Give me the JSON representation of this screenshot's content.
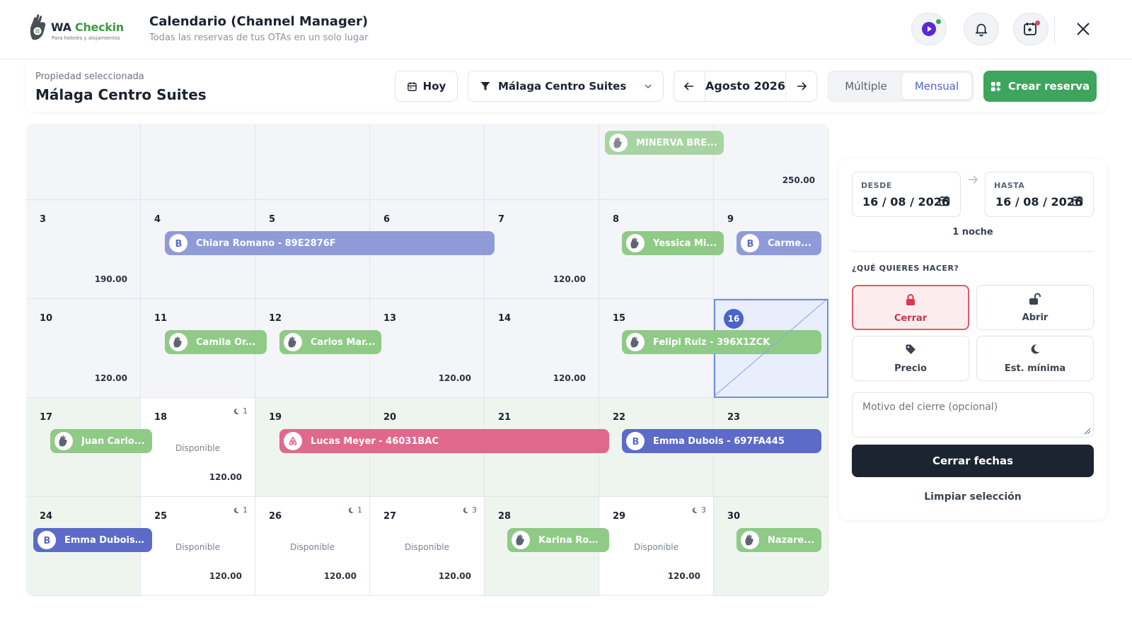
{
  "header": {
    "logo_name_a": "WA",
    "logo_name_b": "Checkin",
    "logo_tagline": "Para hoteles y alojamientos",
    "title": "Calendario (Channel Manager)",
    "subtitle": "Todas las reservas de tus OTAs en un solo lugar",
    "icons": [
      "play-icon",
      "bell-icon",
      "calendar-plus-icon",
      "close-icon"
    ],
    "accent_dot_color": "#3da55d",
    "alert_dot_color": "#e0485a"
  },
  "toolbar": {
    "property_label": "Propiedad seleccionada",
    "property_value": "Málaga Centro Suites",
    "today_label": "Hoy",
    "property_select": "Málaga Centro Suites",
    "month_label": "Agosto 2026",
    "view_multiple": "Múltiple",
    "view_monthly": "Mensual",
    "create_label": "Crear reserva",
    "accent_color": "#3da55d",
    "view_active_color": "#4a64c8"
  },
  "calendar": {
    "week0": {
      "price_sun": "250.00"
    },
    "cells": [
      {
        "day": "3",
        "price": "190.00"
      },
      {
        "day": "4"
      },
      {
        "day": "5"
      },
      {
        "day": "6"
      },
      {
        "day": "7",
        "price": "120.00"
      },
      {
        "day": "8"
      },
      {
        "day": "9"
      },
      {
        "day": "10",
        "price": "120.00"
      },
      {
        "day": "11"
      },
      {
        "day": "12"
      },
      {
        "day": "13",
        "price": "120.00"
      },
      {
        "day": "14",
        "price": "120.00"
      },
      {
        "day": "15"
      },
      {
        "day": "16"
      },
      {
        "day": "17"
      },
      {
        "day": "18",
        "price": "120.00",
        "status": "Disponible",
        "min_stay": "1"
      },
      {
        "day": "19"
      },
      {
        "day": "20"
      },
      {
        "day": "21"
      },
      {
        "day": "22"
      },
      {
        "day": "23"
      },
      {
        "day": "24"
      },
      {
        "day": "25",
        "price": "120.00",
        "status": "Disponible",
        "min_stay": "1"
      },
      {
        "day": "26",
        "price": "120.00",
        "status": "Disponible",
        "min_stay": "1"
      },
      {
        "day": "27",
        "price": "120.00",
        "status": "Disponible",
        "min_stay": "3"
      },
      {
        "day": "28"
      },
      {
        "day": "29",
        "price": "120.00",
        "status": "Disponible",
        "min_stay": "3"
      },
      {
        "day": "30"
      }
    ],
    "bookings": [
      {
        "label": "MINERVA BRE...",
        "source": "wa-checkin"
      },
      {
        "label": "Chiara Romano - 89E2876F",
        "source": "booking"
      },
      {
        "label": "Yessica Mi...",
        "source": "wa-checkin"
      },
      {
        "label": "Carme...",
        "source": "booking"
      },
      {
        "label": "Camila Or...",
        "source": "wa-checkin"
      },
      {
        "label": "Carlos Mar...",
        "source": "wa-checkin"
      },
      {
        "label": "Felipi Ruiz - 396X1ZCK",
        "source": "wa-checkin"
      },
      {
        "label": "Juan Carlo...",
        "source": "wa-checkin"
      },
      {
        "label": "Lucas Meyer - 46031BAC",
        "source": "airbnb"
      },
      {
        "label": "Emma Dubois - 697FA445",
        "source": "booking"
      },
      {
        "label": "Emma Dubois ...",
        "source": "booking"
      },
      {
        "label": "Karina Rod...",
        "source": "wa-checkin"
      },
      {
        "label": "Nazare...",
        "source": "wa-checkin"
      }
    ],
    "colors": {
      "available": "#eef5ee",
      "selected": "#e8eefc",
      "green": "#8fca87",
      "blue": "#8f9bd8",
      "dark_blue": "#5b6bc7",
      "pink": "#e0688d"
    }
  },
  "panel": {
    "from_label": "DESDE",
    "from_value": "16 / 08 / 2026",
    "to_label": "HASTA",
    "to_value": "16 / 08 / 2026",
    "nights": "1 noche",
    "question": "¿QUÉ QUIERES HACER?",
    "actions": [
      {
        "label": "Cerrar",
        "icon": "lock-icon"
      },
      {
        "label": "Abrir",
        "icon": "unlock-icon"
      },
      {
        "label": "Precio",
        "icon": "tag-icon"
      },
      {
        "label": "Est. mínima",
        "icon": "moon-icon"
      }
    ],
    "reason_placeholder": "Motivo del cierre (opcional)",
    "submit_label": "Cerrar fechas",
    "clear_label": "Limpiar selección",
    "active_color": "#e05a6a",
    "submit_color": "#1c2331"
  }
}
